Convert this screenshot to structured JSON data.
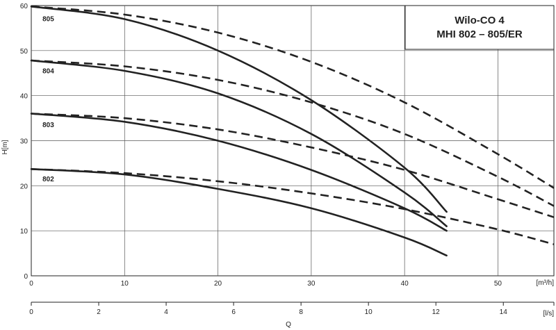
{
  "title_box": {
    "line1": "Wilo-CO 4",
    "line2": "MHI 802 – 805/ER"
  },
  "chart_data": {
    "type": "line",
    "title": "Wilo-CO 4 MHI 802 – 805/ER",
    "ylabel": "H[m]",
    "xlabel_main": "[m³/h]",
    "xlabel_secondary": "[l/s]",
    "xlabel_bottom": "Q",
    "xlim_m3h": [
      0,
      56
    ],
    "ylim": [
      0,
      60
    ],
    "xlim_ls": [
      0,
      15.5
    ],
    "y_ticks": [
      0,
      10,
      20,
      30,
      40,
      50,
      60
    ],
    "x_ticks_m3h": [
      0,
      10,
      20,
      30,
      40,
      50
    ],
    "x_ticks_ls": [
      0,
      2,
      4,
      6,
      8,
      10,
      12,
      14
    ],
    "grid": true,
    "series": [
      {
        "name": "805",
        "style": "solid",
        "points": [
          [
            0,
            59.8
          ],
          [
            10,
            57
          ],
          [
            20,
            50
          ],
          [
            30,
            39
          ],
          [
            40,
            24
          ],
          [
            44.5,
            14.2
          ]
        ]
      },
      {
        "name": "805",
        "style": "dashed",
        "points": [
          [
            0,
            59.8
          ],
          [
            10,
            58
          ],
          [
            20,
            54
          ],
          [
            30,
            47.5
          ],
          [
            40,
            38.5
          ],
          [
            50,
            27
          ],
          [
            56,
            19.5
          ]
        ]
      },
      {
        "name": "804",
        "style": "solid",
        "points": [
          [
            0,
            47.8
          ],
          [
            10,
            45.5
          ],
          [
            20,
            40.5
          ],
          [
            30,
            31.5
          ],
          [
            40,
            18.5
          ],
          [
            44.5,
            11
          ]
        ]
      },
      {
        "name": "804",
        "style": "dashed",
        "points": [
          [
            0,
            47.8
          ],
          [
            10,
            46.5
          ],
          [
            20,
            43.5
          ],
          [
            30,
            38.5
          ],
          [
            40,
            31.5
          ],
          [
            50,
            22
          ],
          [
            56,
            15.5
          ]
        ]
      },
      {
        "name": "803",
        "style": "solid",
        "points": [
          [
            0,
            36
          ],
          [
            10,
            34.2
          ],
          [
            20,
            30
          ],
          [
            30,
            23.5
          ],
          [
            40,
            15
          ],
          [
            44.5,
            10
          ]
        ]
      },
      {
        "name": "803",
        "style": "dashed",
        "points": [
          [
            0,
            36
          ],
          [
            10,
            35
          ],
          [
            20,
            32.5
          ],
          [
            30,
            28.5
          ],
          [
            40,
            23.5
          ],
          [
            50,
            17
          ],
          [
            56,
            13
          ]
        ]
      },
      {
        "name": "802",
        "style": "solid",
        "points": [
          [
            0,
            23.7
          ],
          [
            10,
            22.5
          ],
          [
            20,
            19.3
          ],
          [
            30,
            15
          ],
          [
            40,
            8.5
          ],
          [
            44.5,
            4.5
          ]
        ]
      },
      {
        "name": "802",
        "style": "dashed",
        "points": [
          [
            0,
            23.7
          ],
          [
            10,
            22.8
          ],
          [
            20,
            21
          ],
          [
            30,
            18.3
          ],
          [
            40,
            14.8
          ],
          [
            50,
            10.3
          ],
          [
            56,
            7
          ]
        ]
      }
    ],
    "curve_labels": [
      {
        "text": "805",
        "x": 1.2,
        "y": 56.5
      },
      {
        "text": "804",
        "x": 1.2,
        "y": 45
      },
      {
        "text": "803",
        "x": 1.2,
        "y": 33
      },
      {
        "text": "802",
        "x": 1.2,
        "y": 21
      }
    ]
  }
}
